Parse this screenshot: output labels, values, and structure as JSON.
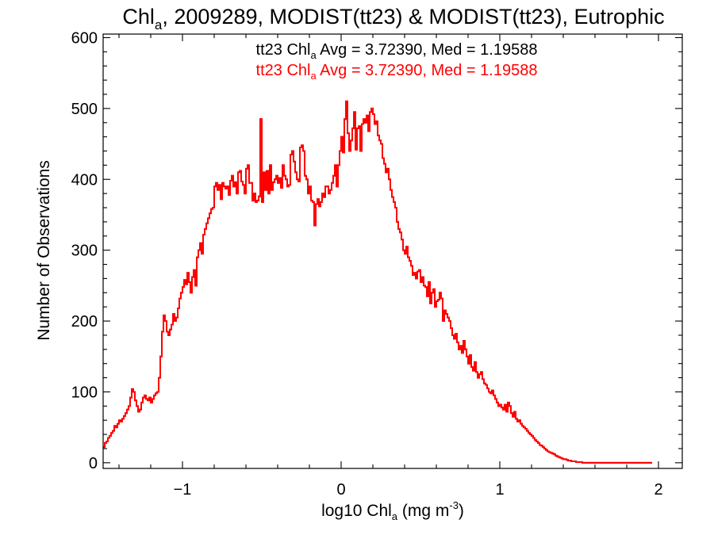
{
  "chart_data": {
    "type": "line",
    "step": true,
    "title": {
      "pre": "Chl",
      "sub": "a",
      "post": ", 2009289, MODIST(tt23) & MODIST(tt23), Eutrophic"
    },
    "xlabel": {
      "pre": "log10 Chl",
      "sub": "a",
      "mid": " (mg m",
      "sup": "-3",
      "post": ")"
    },
    "ylabel": "Number of Observations",
    "xlim": [
      -1.5,
      2.15
    ],
    "ylim": [
      -8,
      605
    ],
    "xticks": [
      -1,
      0,
      1,
      2
    ],
    "xtick_labels": [
      "−1",
      "0",
      "1",
      "2"
    ],
    "yticks": [
      0,
      100,
      200,
      300,
      400,
      500,
      600
    ],
    "ytick_labels": [
      "0",
      "100",
      "200",
      "300",
      "400",
      "500",
      "600"
    ],
    "grid": false,
    "annotations": [
      {
        "pre": "tt23 Chl",
        "sub": "a",
        "post": " Avg = 3.72390, Med = 1.19588",
        "color": "#000000"
      },
      {
        "pre": "tt23 Chl",
        "sub": "a",
        "post": " Avg = 3.72390, Med = 1.19588",
        "color": "#ff0000"
      }
    ],
    "series": [
      {
        "color": "#ff0000",
        "x_start": -1.5,
        "bin_width": 0.01,
        "values": [
          22,
          28,
          30,
          35,
          38,
          42,
          45,
          52,
          50,
          55,
          60,
          58,
          62,
          66,
          70,
          75,
          80,
          92,
          104,
          100,
          88,
          80,
          72,
          75,
          85,
          92,
          95,
          90,
          88,
          92,
          85,
          90,
          95,
          98,
          100,
          120,
          150,
          185,
          208,
          200,
          185,
          180,
          188,
          195,
          210,
          200,
          205,
          218,
          232,
          240,
          248,
          258,
          252,
          268,
          255,
          240,
          262,
          272,
          250,
          290,
          300,
          310,
          295,
          322,
          330,
          338,
          345,
          352,
          358,
          360,
          390,
          395,
          385,
          392,
          372,
          395,
          390,
          387,
          390,
          378,
          398,
          405,
          390,
          396,
          380,
          410,
          412,
          397,
          392,
          380,
          415,
          420,
          395,
          395,
          370,
          380,
          368,
          370,
          376,
          485,
          368,
          410,
          385,
          412,
          380,
          420,
          385,
          396,
          400,
          405,
          395,
          402,
          388,
          420,
          405,
          400,
          390,
          392,
          435,
          440,
          425,
          410,
          400,
          397,
          445,
          448,
          440,
          405,
          400,
          380,
          390,
          370,
          368,
          335,
          365,
          372,
          362,
          368,
          380,
          375,
          390,
          390,
          380,
          385,
          395,
          405,
          420,
          390,
          420,
          440,
          460,
          438,
          485,
          510,
          465,
          440,
          455,
          472,
          495,
          442,
          472,
          475,
          440,
          478,
          485,
          480,
          490,
          468,
          495,
          500,
          492,
          478,
          482,
          462,
          455,
          450,
          430,
          422,
          410,
          415,
          400,
          385,
          375,
          368,
          360,
          340,
          330,
          325,
          315,
          300,
          295,
          305,
          290,
          285,
          278,
          265,
          268,
          260,
          270,
          272,
          255,
          262,
          250,
          248,
          235,
          255,
          225,
          240,
          245,
          220,
          228,
          230,
          240,
          232,
          200,
          215,
          210,
          205,
          200,
          190,
          180,
          175,
          182,
          170,
          160,
          165,
          155,
          172,
          160,
          150,
          140,
          152,
          135,
          130,
          142,
          128,
          120,
          125,
          128,
          118,
          112,
          110,
          105,
          100,
          98,
          102,
          95,
          90,
          85,
          80,
          82,
          78,
          75,
          82,
          72,
          85,
          80,
          70,
          65,
          72,
          62,
          58,
          60,
          55,
          52,
          50,
          48,
          45,
          42,
          40,
          38,
          35,
          32,
          30,
          28,
          25,
          24,
          22,
          20,
          18,
          16,
          15,
          14,
          13,
          12,
          10,
          9,
          8,
          7,
          6,
          5,
          5,
          4,
          3,
          3,
          2,
          2,
          2,
          1,
          1,
          1,
          1,
          0,
          0,
          0,
          0,
          0,
          0,
          0,
          0,
          0,
          0,
          0,
          0,
          0,
          0,
          0,
          0,
          0,
          0,
          0,
          0,
          0,
          0,
          0,
          0,
          0,
          0,
          0,
          0,
          0,
          0,
          0,
          0,
          0,
          0,
          0,
          0,
          0,
          0,
          0,
          0,
          0,
          0,
          0,
          0
        ]
      },
      {
        "color": "#ff0000",
        "x_start": -1.5,
        "bin_width": 0.01,
        "values": [
          22,
          28,
          30,
          35,
          38,
          42,
          45,
          52,
          50,
          55,
          60,
          58,
          62,
          66,
          70,
          75,
          80,
          92,
          104,
          100,
          88,
          80,
          72,
          75,
          85,
          92,
          95,
          90,
          88,
          92,
          85,
          90,
          95,
          98,
          100,
          120,
          150,
          185,
          208,
          200,
          185,
          180,
          188,
          195,
          210,
          200,
          205,
          218,
          232,
          240,
          248,
          258,
          252,
          268,
          255,
          240,
          262,
          272,
          250,
          290,
          300,
          310,
          295,
          322,
          330,
          338,
          345,
          352,
          358,
          360,
          390,
          395,
          385,
          392,
          372,
          395,
          390,
          387,
          390,
          378,
          398,
          405,
          390,
          396,
          380,
          410,
          412,
          397,
          392,
          380,
          415,
          420,
          395,
          395,
          370,
          380,
          368,
          370,
          376,
          485,
          368,
          410,
          385,
          412,
          380,
          420,
          385,
          396,
          400,
          405,
          395,
          402,
          388,
          420,
          405,
          400,
          390,
          392,
          435,
          440,
          425,
          410,
          400,
          397,
          445,
          448,
          440,
          405,
          400,
          380,
          390,
          370,
          368,
          335,
          365,
          372,
          362,
          368,
          380,
          375,
          390,
          390,
          380,
          385,
          395,
          405,
          420,
          390,
          420,
          440,
          460,
          438,
          485,
          510,
          465,
          440,
          455,
          472,
          495,
          442,
          472,
          475,
          440,
          478,
          485,
          480,
          490,
          468,
          495,
          500,
          492,
          478,
          482,
          462,
          455,
          450,
          430,
          422,
          410,
          415,
          400,
          385,
          375,
          368,
          360,
          340,
          330,
          325,
          315,
          300,
          295,
          305,
          290,
          285,
          278,
          265,
          268,
          260,
          270,
          272,
          255,
          262,
          250,
          248,
          235,
          255,
          225,
          240,
          245,
          220,
          228,
          230,
          240,
          232,
          200,
          215,
          210,
          205,
          200,
          190,
          180,
          175,
          182,
          170,
          160,
          165,
          155,
          172,
          160,
          150,
          140,
          152,
          135,
          130,
          142,
          128,
          120,
          125,
          128,
          118,
          112,
          110,
          105,
          100,
          98,
          102,
          95,
          90,
          85,
          80,
          82,
          78,
          75,
          82,
          72,
          85,
          80,
          70,
          65,
          72,
          62,
          58,
          60,
          55,
          52,
          50,
          48,
          45,
          42,
          40,
          38,
          35,
          32,
          30,
          28,
          25,
          24,
          22,
          20,
          18,
          16,
          15,
          14,
          13,
          12,
          10,
          9,
          8,
          7,
          6,
          5,
          5,
          4,
          3,
          3,
          2,
          2,
          2,
          1,
          1,
          1,
          1,
          0,
          0,
          0,
          0,
          0,
          0,
          0,
          0,
          0,
          0,
          0,
          0,
          0,
          0,
          0,
          0,
          0,
          0,
          0,
          0,
          0,
          0,
          0,
          0,
          0,
          0,
          0,
          0,
          0,
          0,
          0,
          0,
          0,
          0,
          0,
          0,
          0,
          0,
          0,
          0,
          0,
          0,
          0,
          0
        ]
      }
    ]
  }
}
